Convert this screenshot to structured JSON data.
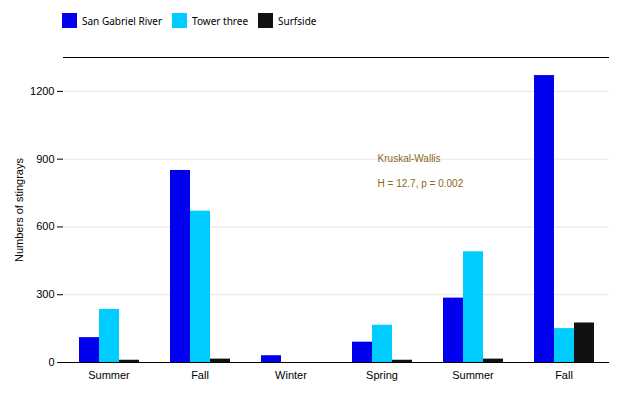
{
  "chart_data": {
    "type": "bar",
    "categories": [
      "Summer",
      "Fall",
      "Winter",
      "Spring",
      "Summer",
      "Fall"
    ],
    "series": [
      {
        "name": "San Gabriel River",
        "color": "#0000EE",
        "values": [
          110,
          850,
          30,
          90,
          285,
          1270
        ]
      },
      {
        "name": "Tower three",
        "color": "#00CCFF",
        "values": [
          235,
          670,
          0,
          165,
          490,
          150
        ]
      },
      {
        "name": "Surfside",
        "color": "#111111",
        "values": [
          10,
          15,
          0,
          10,
          15,
          175
        ]
      }
    ],
    "ylabel": "Numbers of stingrays",
    "ylim": [
      0,
      1350
    ],
    "yticks": [
      0,
      300,
      600,
      900,
      1200
    ],
    "grid": true,
    "legend": "top",
    "annotations": [
      {
        "text": "Kruskal-Wallis",
        "color": "#8B6914"
      },
      {
        "text": "H = 12.7, p = 0.002",
        "color": "#8B6914"
      }
    ]
  }
}
